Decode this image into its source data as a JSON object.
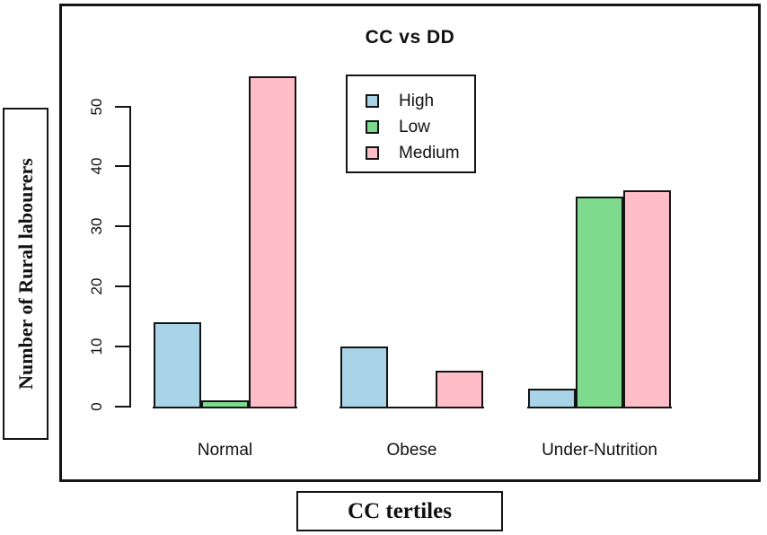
{
  "chart_data": {
    "type": "bar",
    "title": "CC vs DD",
    "xlabel": "CC tertiles",
    "ylabel": "Number of Rural labourers",
    "categories": [
      "Normal",
      "Obese",
      "Under-Nutrition"
    ],
    "series": [
      {
        "name": "High",
        "color": "#A9D3E6",
        "values": [
          14,
          10,
          3
        ]
      },
      {
        "name": "Low",
        "color": "#7EDB8D",
        "values": [
          1,
          0,
          35
        ]
      },
      {
        "name": "Medium",
        "color": "#FFBDC8",
        "values": [
          55,
          6,
          36
        ]
      }
    ],
    "y_ticks": [
      0,
      10,
      20,
      30,
      40,
      50
    ],
    "ylim": [
      0,
      56
    ],
    "grid": false,
    "legend_position": "inside-top-left-of-plot",
    "frame_color": "#141414",
    "background_color": "#ffffff"
  }
}
